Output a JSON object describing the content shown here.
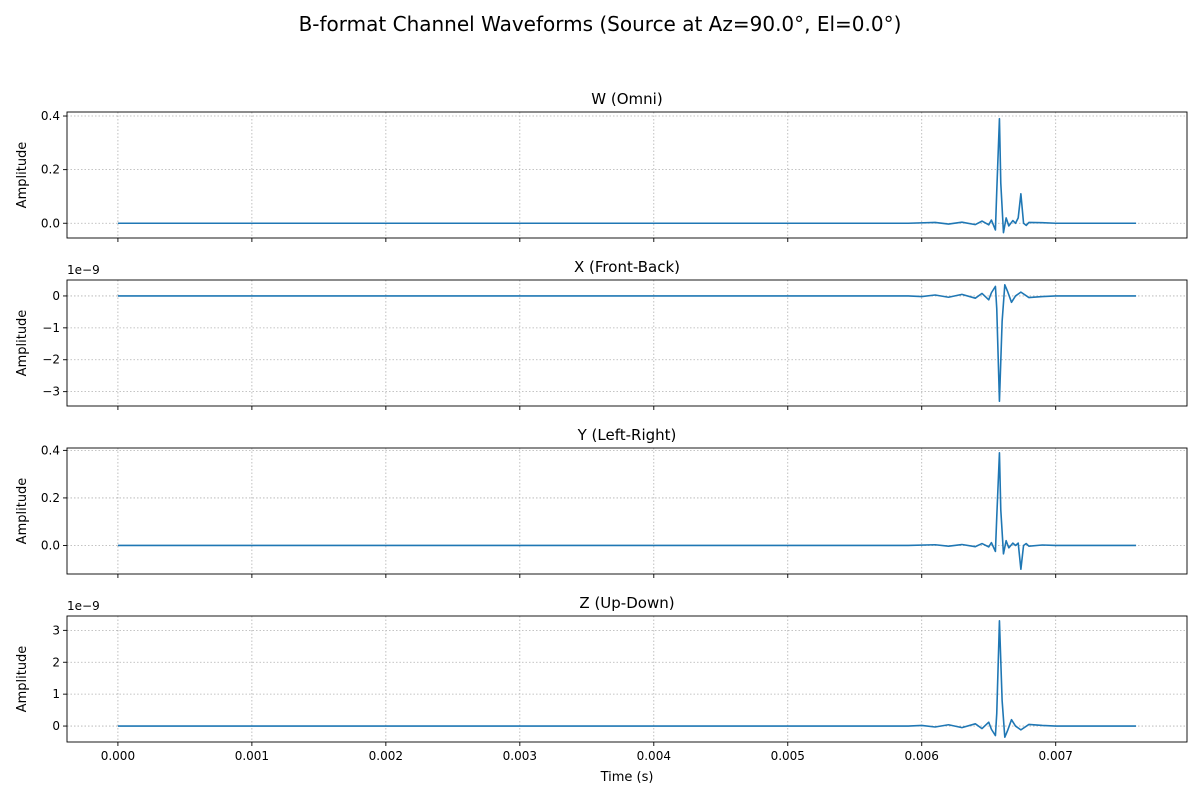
{
  "figure": {
    "title": "B-format Channel Waveforms (Source at Az=90.0°, El=0.0°)"
  },
  "chart_data": [
    {
      "type": "line",
      "title": "W (Omni)",
      "xlabel": "",
      "ylabel": "Amplitude",
      "offset_text": "",
      "xlim": [
        -0.00038,
        0.00798
      ],
      "ylim": [
        -0.055,
        0.415
      ],
      "yticks": [
        0.0,
        0.2,
        0.4
      ],
      "ytick_labels": [
        "0.0",
        "0.2",
        "0.4"
      ],
      "xticks": [
        0,
        0.001,
        0.002,
        0.003,
        0.004,
        0.005,
        0.006,
        0.007
      ],
      "xtick_labels": [],
      "grid": true,
      "line_color": "#1f77b4",
      "x": [
        0.0,
        0.0059,
        0.0061,
        0.0062,
        0.0063,
        0.0064,
        0.00645,
        0.0065,
        0.00652,
        0.00655,
        0.00656,
        0.00658,
        0.00659,
        0.00661,
        0.00663,
        0.00665,
        0.00668,
        0.0067,
        0.00672,
        0.00674,
        0.00676,
        0.00678,
        0.0068,
        0.0069,
        0.007,
        0.0076
      ],
      "y": [
        0.0,
        0.0,
        0.003,
        -0.003,
        0.004,
        -0.005,
        0.008,
        -0.006,
        0.012,
        -0.025,
        0.12,
        0.39,
        0.15,
        -0.035,
        0.02,
        -0.01,
        0.01,
        0.0,
        0.02,
        0.11,
        0.0,
        -0.008,
        0.003,
        0.002,
        0.0,
        0.0
      ]
    },
    {
      "type": "line",
      "title": "X (Front-Back)",
      "xlabel": "",
      "ylabel": "Amplitude",
      "offset_text": "1e−9",
      "xlim": [
        -0.00038,
        0.00798
      ],
      "ylim": [
        -3.45,
        0.5
      ],
      "yticks": [
        -3,
        -2,
        -1,
        0
      ],
      "ytick_labels": [
        "−3",
        "−2",
        "−1",
        "0"
      ],
      "xticks": [
        0,
        0.001,
        0.002,
        0.003,
        0.004,
        0.005,
        0.006,
        0.007
      ],
      "xtick_labels": [],
      "grid": true,
      "line_color": "#1f77b4",
      "x": [
        0.0,
        0.0059,
        0.006,
        0.0061,
        0.0062,
        0.0063,
        0.0064,
        0.00645,
        0.0065,
        0.00652,
        0.00655,
        0.00656,
        0.00658,
        0.0066,
        0.00662,
        0.00664,
        0.00667,
        0.0067,
        0.00674,
        0.0068,
        0.0069,
        0.007,
        0.0076
      ],
      "y": [
        0.0,
        0.0,
        -0.02,
        0.03,
        -0.04,
        0.05,
        -0.07,
        0.08,
        -0.12,
        0.1,
        0.3,
        -0.4,
        -3.3,
        -0.8,
        0.35,
        0.15,
        -0.2,
        0.0,
        0.12,
        -0.05,
        -0.02,
        0.0,
        0.0
      ]
    },
    {
      "type": "line",
      "title": "Y (Left-Right)",
      "xlabel": "",
      "ylabel": "Amplitude",
      "offset_text": "",
      "xlim": [
        -0.00038,
        0.00798
      ],
      "ylim": [
        -0.12,
        0.41
      ],
      "yticks": [
        0.0,
        0.2,
        0.4
      ],
      "ytick_labels": [
        "0.0",
        "0.2",
        "0.4"
      ],
      "xticks": [
        0,
        0.001,
        0.002,
        0.003,
        0.004,
        0.005,
        0.006,
        0.007
      ],
      "xtick_labels": [],
      "grid": true,
      "line_color": "#1f77b4",
      "x": [
        0.0,
        0.0059,
        0.0061,
        0.0062,
        0.0063,
        0.0064,
        0.00645,
        0.0065,
        0.00652,
        0.00655,
        0.00656,
        0.00658,
        0.00659,
        0.00661,
        0.00663,
        0.00665,
        0.00668,
        0.0067,
        0.00672,
        0.00674,
        0.00676,
        0.00678,
        0.0068,
        0.0069,
        0.007,
        0.0076
      ],
      "y": [
        0.0,
        0.0,
        0.003,
        -0.003,
        0.004,
        -0.005,
        0.008,
        -0.006,
        0.012,
        -0.025,
        0.12,
        0.39,
        0.15,
        -0.035,
        0.02,
        -0.01,
        0.01,
        0.0,
        0.01,
        -0.1,
        0.0,
        0.008,
        -0.003,
        0.002,
        0.0,
        0.0
      ]
    },
    {
      "type": "line",
      "title": "Z (Up-Down)",
      "xlabel": "Time (s)",
      "ylabel": "Amplitude",
      "offset_text": "1e−9",
      "xlim": [
        -0.00038,
        0.00798
      ],
      "ylim": [
        -0.5,
        3.45
      ],
      "yticks": [
        0,
        1,
        2,
        3
      ],
      "ytick_labels": [
        "0",
        "1",
        "2",
        "3"
      ],
      "xticks": [
        0,
        0.001,
        0.002,
        0.003,
        0.004,
        0.005,
        0.006,
        0.007
      ],
      "xtick_labels": [
        "0.000",
        "0.001",
        "0.002",
        "0.003",
        "0.004",
        "0.005",
        "0.006",
        "0.007"
      ],
      "grid": true,
      "line_color": "#1f77b4",
      "x": [
        0.0,
        0.0059,
        0.006,
        0.0061,
        0.0062,
        0.0063,
        0.0064,
        0.00645,
        0.0065,
        0.00652,
        0.00655,
        0.00656,
        0.00658,
        0.0066,
        0.00662,
        0.00664,
        0.00667,
        0.0067,
        0.00674,
        0.0068,
        0.0069,
        0.007,
        0.0076
      ],
      "y": [
        0.0,
        0.0,
        0.02,
        -0.03,
        0.04,
        -0.05,
        0.07,
        -0.08,
        0.12,
        -0.1,
        -0.3,
        0.4,
        3.3,
        0.8,
        -0.35,
        -0.15,
        0.2,
        0.0,
        -0.12,
        0.05,
        0.02,
        0.0,
        0.0
      ]
    }
  ]
}
